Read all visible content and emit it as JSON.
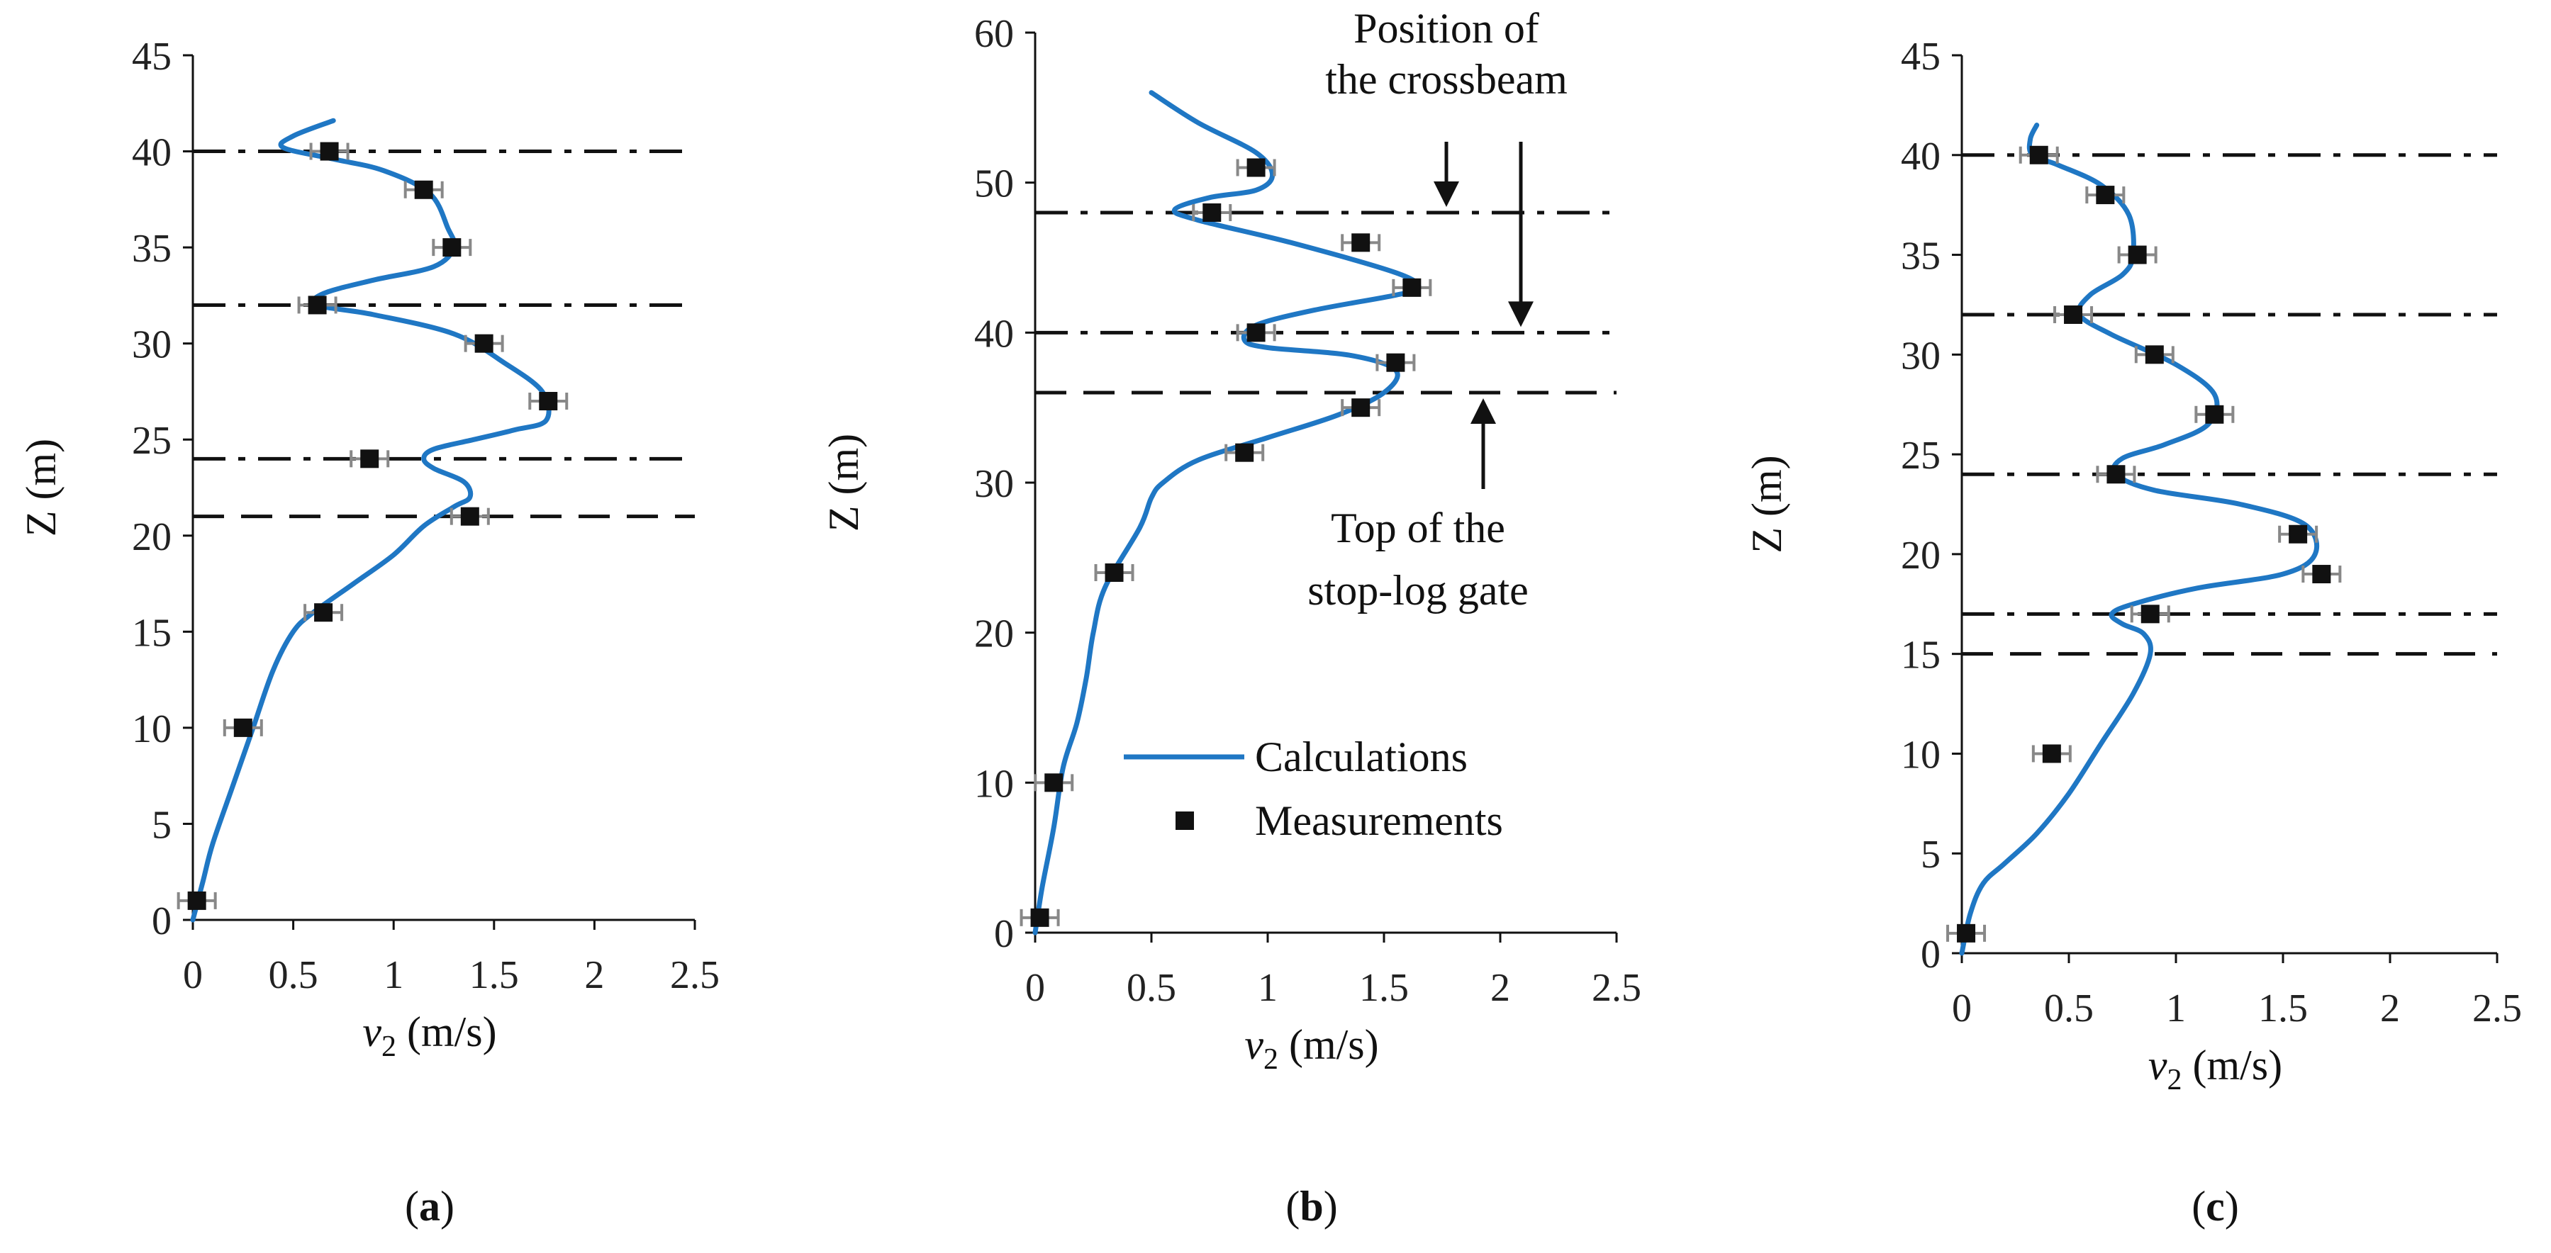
{
  "chart_data": [
    {
      "type": "line",
      "panel_label": "a",
      "xlabel_var": "v",
      "xlabel_sub": "2",
      "xlabel_unit": " (m/s)",
      "ylabel": "Z (m)",
      "xlim": [
        0,
        2.5
      ],
      "ylim": [
        0,
        45
      ],
      "xticks": [
        0,
        0.5,
        1,
        1.5,
        2,
        2.5
      ],
      "xtick_labels": [
        "0",
        "0.5",
        "1",
        "1.5",
        "2",
        "2.5"
      ],
      "yticks": [
        0,
        5,
        10,
        15,
        20,
        25,
        30,
        35,
        40,
        45
      ],
      "ytick_labels": [
        "0",
        "5",
        "10",
        "15",
        "20",
        "25",
        "30",
        "35",
        "40",
        "45"
      ],
      "series": [
        {
          "name": "Calculations",
          "kind": "line",
          "color": "#1f77c4",
          "x": [
            0,
            0.05,
            0.1,
            0.2,
            0.3,
            0.4,
            0.5,
            0.6,
            0.8,
            1.0,
            1.15,
            1.3,
            1.38,
            1.35,
            1.2,
            1.15,
            1.2,
            1.4,
            1.6,
            1.76,
            1.74,
            1.55,
            1.3,
            0.9,
            0.62,
            0.65,
            0.9,
            1.2,
            1.3,
            1.27,
            1.18,
            0.95,
            0.7,
            0.45,
            0.5,
            0.7
          ],
          "y": [
            0,
            2,
            4,
            7,
            10,
            13,
            15,
            16,
            17.5,
            19,
            20.5,
            21.5,
            22,
            22.8,
            23.5,
            24,
            24.5,
            25,
            25.5,
            26,
            27.5,
            29,
            30.5,
            31.5,
            32,
            32.6,
            33.3,
            34,
            35,
            36,
            37.8,
            39,
            39.6,
            40.2,
            40.8,
            41.6
          ]
        },
        {
          "name": "Measurements",
          "kind": "scatter",
          "color": "#111111",
          "x": [
            0.02,
            0.25,
            0.65,
            0.88,
            1.38,
            1.77,
            1.45,
            0.62,
            1.29,
            1.15,
            0.68
          ],
          "y": [
            1,
            10,
            16,
            24,
            21,
            27,
            30,
            32,
            35,
            38,
            40
          ]
        }
      ],
      "hlines": [
        {
          "y": 40,
          "style": "dash-dot"
        },
        {
          "y": 32,
          "style": "dash-dot"
        },
        {
          "y": 24,
          "style": "dash-dot"
        },
        {
          "y": 21,
          "style": "dashed"
        }
      ]
    },
    {
      "type": "line",
      "panel_label": "b",
      "xlabel_var": "v",
      "xlabel_sub": "2",
      "xlabel_unit": " (m/s)",
      "ylabel": "Z (m)",
      "xlim": [
        0,
        2.5
      ],
      "ylim": [
        0,
        60
      ],
      "xticks": [
        0,
        0.5,
        1,
        1.5,
        2,
        2.5
      ],
      "xtick_labels": [
        "0",
        "0.5",
        "1",
        "1.5",
        "2",
        "2.5"
      ],
      "yticks": [
        0,
        10,
        20,
        30,
        40,
        50,
        60
      ],
      "ytick_labels": [
        "0",
        "10",
        "20",
        "30",
        "40",
        "50",
        "60"
      ],
      "series": [
        {
          "name": "Calculations",
          "kind": "line",
          "color": "#1f77c4",
          "x": [
            0,
            0.03,
            0.08,
            0.12,
            0.18,
            0.22,
            0.25,
            0.3,
            0.45,
            0.5,
            0.55,
            0.7,
            1.0,
            1.3,
            1.5,
            1.55,
            1.35,
            1.0,
            0.9,
            0.95,
            1.2,
            1.55,
            1.65,
            1.55,
            1.1,
            0.7,
            0.6,
            0.75,
            0.95,
            1.02,
            0.95,
            0.7,
            0.5
          ],
          "y": [
            0,
            3,
            7,
            11,
            14,
            17,
            20,
            23,
            27,
            29,
            30,
            31.5,
            33,
            34.5,
            36,
            37.5,
            38.5,
            39,
            39.5,
            40.5,
            41.5,
            42.5,
            43,
            44,
            46,
            47.5,
            48.2,
            49,
            49.5,
            50.5,
            52,
            54,
            56
          ]
        },
        {
          "name": "Measurements",
          "kind": "scatter",
          "color": "#111111",
          "x": [
            0.02,
            0.08,
            0.34,
            0.9,
            1.4,
            1.55,
            0.95,
            1.62,
            1.4,
            0.76,
            0.95
          ],
          "y": [
            1,
            10,
            24,
            32,
            35,
            38,
            40,
            43,
            46,
            48,
            51
          ]
        }
      ],
      "hlines": [
        {
          "y": 48,
          "style": "dash-dot"
        },
        {
          "y": 40,
          "style": "dash-dot"
        },
        {
          "y": 36,
          "style": "dashed"
        }
      ],
      "annotations": [
        {
          "lines": [
            "Position of",
            "the crossbeam"
          ]
        },
        {
          "lines": [
            "Top of the",
            "stop-log gate"
          ]
        }
      ],
      "legend": {
        "position": "bottom-right",
        "entries": [
          "Calculations",
          "Measurements"
        ]
      }
    },
    {
      "type": "line",
      "panel_label": "c",
      "xlabel_var": "v",
      "xlabel_sub": "2",
      "xlabel_unit": " (m/s)",
      "ylabel": "Z (m)",
      "xlim": [
        0,
        2.5
      ],
      "ylim": [
        0,
        45
      ],
      "xticks": [
        0,
        0.5,
        1,
        1.5,
        2,
        2.5
      ],
      "xtick_labels": [
        "0",
        "0.5",
        "1",
        "1.5",
        "2",
        "2.5"
      ],
      "yticks": [
        0,
        5,
        10,
        15,
        20,
        25,
        30,
        35,
        40,
        45
      ],
      "ytick_labels": [
        "0",
        "5",
        "10",
        "15",
        "20",
        "25",
        "30",
        "35",
        "40",
        "45"
      ],
      "series": [
        {
          "name": "Calculations",
          "kind": "line",
          "color": "#1f77c4",
          "x": [
            0,
            0.04,
            0.1,
            0.2,
            0.35,
            0.5,
            0.65,
            0.8,
            0.88,
            0.85,
            0.75,
            0.7,
            0.8,
            1.1,
            1.5,
            1.65,
            1.6,
            1.3,
            0.9,
            0.72,
            0.75,
            0.95,
            1.15,
            1.18,
            1.0,
            0.7,
            0.55,
            0.6,
            0.75,
            0.8,
            0.78,
            0.65,
            0.45,
            0.33,
            0.32,
            0.35
          ],
          "y": [
            0,
            2,
            3.5,
            4.5,
            6,
            8,
            10.5,
            13,
            15,
            16,
            16.5,
            17,
            17.5,
            18.3,
            19,
            20,
            21.5,
            22.5,
            23.2,
            24,
            24.8,
            25.5,
            26.5,
            28,
            29.5,
            31,
            32,
            33,
            34,
            35,
            37,
            38.5,
            39.5,
            40,
            40.8,
            41.5
          ]
        },
        {
          "name": "Measurements",
          "kind": "scatter",
          "color": "#111111",
          "x": [
            0.02,
            0.42,
            0.88,
            1.68,
            1.57,
            0.72,
            1.18,
            0.9,
            0.52,
            0.82,
            0.67,
            0.36
          ],
          "y": [
            1,
            10,
            17,
            19,
            21,
            24,
            27,
            30,
            32,
            35,
            38,
            40
          ]
        }
      ],
      "hlines": [
        {
          "y": 40,
          "style": "dash-dot"
        },
        {
          "y": 32,
          "style": "dash-dot"
        },
        {
          "y": 24,
          "style": "dash-dot"
        },
        {
          "y": 17,
          "style": "dash-dot"
        },
        {
          "y": 15,
          "style": "dashed"
        }
      ]
    }
  ]
}
